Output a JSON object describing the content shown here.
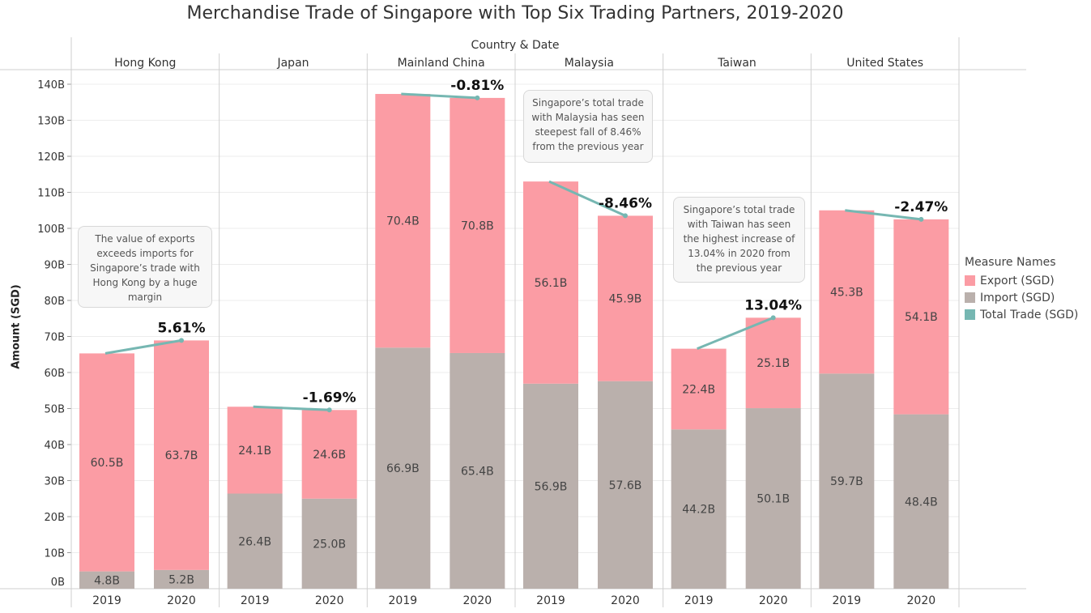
{
  "title": "Merchandise Trade of Singapore with Top Six Trading Partners, 2019-2020",
  "chart_data": {
    "type": "bar",
    "stacked": true,
    "column_title": "Country & Date",
    "ylabel": "Amount (SGD)",
    "ylim": [
      0,
      140
    ],
    "yticks": [
      "0B",
      "10B",
      "20B",
      "30B",
      "40B",
      "50B",
      "60B",
      "70B",
      "80B",
      "90B",
      "100B",
      "110B",
      "120B",
      "130B",
      "140B"
    ],
    "grid": true,
    "legend": {
      "title": "Measure Names",
      "position": "right",
      "items": [
        {
          "label": "Export (SGD)",
          "color": "#fb9ca4"
        },
        {
          "label": "Import (SGD)",
          "color": "#bab0ac"
        },
        {
          "label": "Total Trade (SGD)",
          "color": "#76b7b2"
        }
      ]
    },
    "groups": [
      {
        "name": "Hong Kong",
        "change_label": "5.61%",
        "years": [
          {
            "year": "2019",
            "import": 4.8,
            "export": 60.5,
            "import_label": "4.8B",
            "export_label": "60.5B"
          },
          {
            "year": "2020",
            "import": 5.2,
            "export": 63.7,
            "import_label": "5.2B",
            "export_label": "63.7B"
          }
        ]
      },
      {
        "name": "Japan",
        "change_label": "-1.69%",
        "years": [
          {
            "year": "2019",
            "import": 26.4,
            "export": 24.1,
            "import_label": "26.4B",
            "export_label": "24.1B"
          },
          {
            "year": "2020",
            "import": 25.0,
            "export": 24.6,
            "import_label": "25.0B",
            "export_label": "24.6B"
          }
        ]
      },
      {
        "name": "Mainland China",
        "change_label": "-0.81%",
        "years": [
          {
            "year": "2019",
            "import": 66.9,
            "export": 70.4,
            "import_label": "66.9B",
            "export_label": "70.4B"
          },
          {
            "year": "2020",
            "import": 65.4,
            "export": 70.8,
            "import_label": "65.4B",
            "export_label": "70.8B"
          }
        ]
      },
      {
        "name": "Malaysia",
        "change_label": "-8.46%",
        "years": [
          {
            "year": "2019",
            "import": 56.9,
            "export": 56.1,
            "import_label": "56.9B",
            "export_label": "56.1B"
          },
          {
            "year": "2020",
            "import": 57.6,
            "export": 45.9,
            "import_label": "57.6B",
            "export_label": "45.9B"
          }
        ]
      },
      {
        "name": "Taiwan",
        "change_label": "13.04%",
        "years": [
          {
            "year": "2019",
            "import": 44.2,
            "export": 22.4,
            "import_label": "44.2B",
            "export_label": "22.4B"
          },
          {
            "year": "2020",
            "import": 50.1,
            "export": 25.1,
            "import_label": "50.1B",
            "export_label": "25.1B"
          }
        ]
      },
      {
        "name": "United States",
        "change_label": "-2.47%",
        "years": [
          {
            "year": "2019",
            "import": 59.7,
            "export": 45.3,
            "import_label": "59.7B",
            "export_label": "45.3B"
          },
          {
            "year": "2020",
            "import": 48.4,
            "export": 54.1,
            "import_label": "48.4B",
            "export_label": "54.1B"
          }
        ]
      }
    ],
    "annotations": [
      {
        "id": "hk",
        "text": "The value of exports exceeds imports  for Singapore’s trade with Hong Kong  by a huge margin"
      },
      {
        "id": "my",
        "text": "Singapore’s total trade with Malaysia has seen steepest fall of 8.46% from the previous year"
      },
      {
        "id": "tw",
        "text": "Singapore’s total trade with Taiwan has seen the highest increase of 13.04% in 2020 from the previous year"
      }
    ]
  }
}
